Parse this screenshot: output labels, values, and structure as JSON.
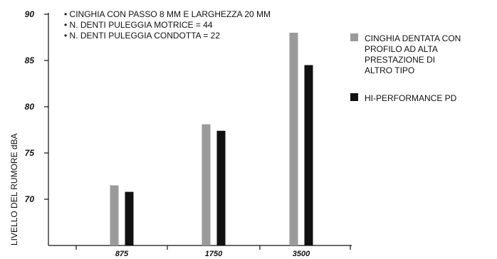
{
  "chart_data": {
    "type": "bar",
    "title": "",
    "xlabel": "",
    "ylabel": "LIVELLO DEL RUMORE dBA",
    "categories": [
      "875",
      "1750",
      "3500"
    ],
    "y_ticks": [
      "70",
      "75",
      "80",
      "85",
      "90"
    ],
    "ylim": [
      65,
      90
    ],
    "grid": false,
    "legend_placement": "right",
    "notes": [
      "• CINGHIA CON PASSO 8 MM E LARGHEZZA 20 MM",
      "• N. DENTI PULEGGIA MOTRICE = 44",
      "• N. DENTI PULEGGIA CONDOTTA = 22"
    ],
    "series": [
      {
        "name_lines": [
          "CINGHIA DENTATA CON",
          "PROFILO AD ALTA",
          "PRESTAZIONE DI",
          "ALTRO TIPO"
        ],
        "color": "#9a9a9a",
        "values": [
          71.5,
          78.1,
          88.0
        ]
      },
      {
        "name_lines": [
          "HI-PERFORMANCE PD"
        ],
        "color": "#111111",
        "values": [
          70.8,
          77.4,
          84.5
        ]
      }
    ]
  }
}
